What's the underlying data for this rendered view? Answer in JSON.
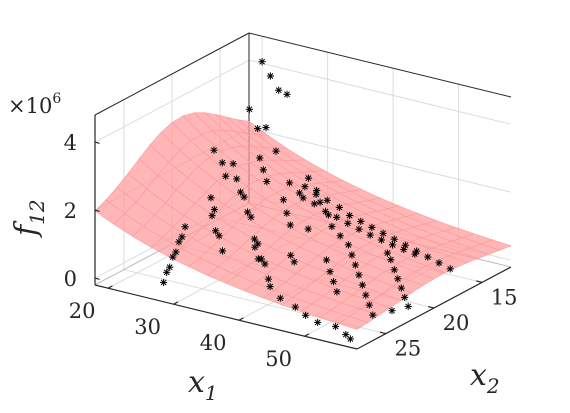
{
  "chart_data": {
    "type": "scatter3d",
    "zlabel": {
      "base": "f",
      "sub": "12"
    },
    "xlabel": {
      "base": "x",
      "sub": "1"
    },
    "ylabel": {
      "base": "x",
      "sub": "2"
    },
    "zscale_label": {
      "base": "×10",
      "exp": "6"
    },
    "x_ticks": [
      "20",
      "30",
      "40",
      "50"
    ],
    "y_ticks": [
      "15",
      "20",
      "25"
    ],
    "z_ticks": [
      "0",
      "2",
      "4"
    ],
    "xlim": [
      18,
      58
    ],
    "ylim": [
      12,
      28
    ],
    "zlim": [
      -0.2,
      4.8
    ],
    "grid": true,
    "surface_color": "#ff9a9a",
    "surface_edge_color": "#e05858",
    "marker": "*",
    "marker_color": "#000000",
    "points": [
      [
        20,
        12,
        4.05
      ],
      [
        22,
        12.5,
        3.8
      ],
      [
        24,
        13,
        3.55
      ],
      [
        26,
        13.5,
        3.6
      ],
      [
        21,
        14,
        3.0
      ],
      [
        23,
        14.5,
        2.6
      ],
      [
        25,
        15,
        2.8
      ],
      [
        28,
        16,
        2.4
      ],
      [
        20,
        17,
        2.2
      ],
      [
        22,
        17.5,
        2.0
      ],
      [
        24,
        18.5,
        1.85
      ],
      [
        27,
        19,
        1.6
      ],
      [
        29,
        20,
        1.7
      ],
      [
        31,
        21,
        1.5
      ],
      [
        33,
        22,
        1.6
      ],
      [
        35,
        23,
        1.2
      ],
      [
        37,
        24,
        1.3
      ],
      [
        39,
        25,
        1.1
      ],
      [
        41,
        26,
        1.2
      ],
      [
        43,
        27,
        1.0
      ],
      [
        44,
        27.5,
        0.9
      ],
      [
        46,
        27.8,
        0.7
      ],
      [
        48,
        27.6,
        0.5
      ],
      [
        50,
        27.9,
        0.4
      ],
      [
        52,
        28,
        0.3
      ],
      [
        54,
        27.5,
        0.2
      ],
      [
        56,
        27.8,
        0.1
      ],
      [
        57,
        28,
        0.05
      ],
      [
        30,
        14,
        1.4
      ],
      [
        32,
        14.5,
        1.2
      ],
      [
        34,
        15.5,
        1.1
      ],
      [
        36,
        16,
        0.9
      ],
      [
        38,
        17,
        0.8
      ],
      [
        40,
        17.5,
        0.7
      ],
      [
        42,
        18,
        0.6
      ],
      [
        44,
        19,
        0.55
      ],
      [
        46,
        20,
        0.5
      ],
      [
        48,
        21,
        0.45
      ],
      [
        50,
        22,
        0.4
      ],
      [
        52,
        23,
        0.35
      ],
      [
        54,
        24,
        0.3
      ],
      [
        56,
        25,
        0.25
      ],
      [
        28,
        13,
        0.9
      ],
      [
        30,
        13.2,
        0.8
      ],
      [
        32,
        13.4,
        0.75
      ],
      [
        34,
        13.5,
        0.65
      ],
      [
        36,
        13.8,
        0.55
      ],
      [
        38,
        14,
        0.5
      ],
      [
        40,
        14.2,
        0.45
      ],
      [
        42,
        14.4,
        0.4
      ],
      [
        44,
        14.6,
        0.35
      ],
      [
        46,
        14.8,
        0.3
      ],
      [
        48,
        15,
        0.25
      ],
      [
        50,
        15.2,
        0.2
      ],
      [
        52,
        15.4,
        0.15
      ],
      [
        54,
        15.6,
        0.1
      ],
      [
        26,
        12.2,
        0.5
      ],
      [
        27,
        12.5,
        0.45
      ],
      [
        29,
        12.7,
        0.4
      ],
      [
        31,
        12.9,
        0.3
      ],
      [
        33,
        13.1,
        0.25
      ],
      [
        35,
        13.3,
        0.2
      ],
      [
        37,
        13.5,
        0.15
      ],
      [
        39,
        13.7,
        0.1
      ],
      [
        41,
        13.9,
        0.08
      ],
      [
        43,
        14.1,
        0.06
      ],
      [
        45,
        14.3,
        0.05
      ],
      [
        47,
        14.5,
        0.04
      ],
      [
        20,
        20,
        0.4
      ],
      [
        21,
        21,
        0.3
      ],
      [
        22,
        22,
        0.35
      ],
      [
        23,
        23,
        0.25
      ],
      [
        24,
        24,
        0.3
      ],
      [
        25,
        25,
        0.2
      ],
      [
        26,
        26,
        0.25
      ],
      [
        27,
        27,
        0.15
      ],
      [
        30,
        24,
        1.8
      ],
      [
        32,
        25,
        1.6
      ],
      [
        34,
        26,
        1.7
      ],
      [
        36,
        27,
        1.5
      ],
      [
        38,
        25,
        1.4
      ],
      [
        40,
        26,
        1.3
      ],
      [
        42,
        24,
        1.2
      ],
      [
        44,
        25,
        1.25
      ],
      [
        46,
        23,
        1.1
      ],
      [
        48,
        24,
        1.0
      ],
      [
        50,
        25,
        0.95
      ],
      [
        52,
        26,
        0.9
      ],
      [
        35,
        20,
        1.9
      ],
      [
        37,
        21,
        1.75
      ],
      [
        39,
        22,
        1.65
      ],
      [
        41,
        21.5,
        1.55
      ],
      [
        33,
        18,
        2.0
      ],
      [
        31,
        19,
        2.1
      ],
      [
        29,
        18,
        2.2
      ],
      [
        27,
        17,
        2.3
      ],
      [
        45,
        16,
        0.2
      ],
      [
        47,
        17,
        0.25
      ],
      [
        49,
        18,
        0.2
      ],
      [
        51,
        19,
        0.18
      ],
      [
        53,
        20,
        0.15
      ],
      [
        55,
        21,
        0.12
      ],
      [
        57,
        22,
        0.1
      ],
      [
        56,
        23,
        0.08
      ],
      [
        20,
        15,
        1.5
      ],
      [
        22,
        16,
        1.3
      ],
      [
        21,
        18,
        1.0
      ],
      [
        23,
        19,
        0.9
      ]
    ]
  }
}
